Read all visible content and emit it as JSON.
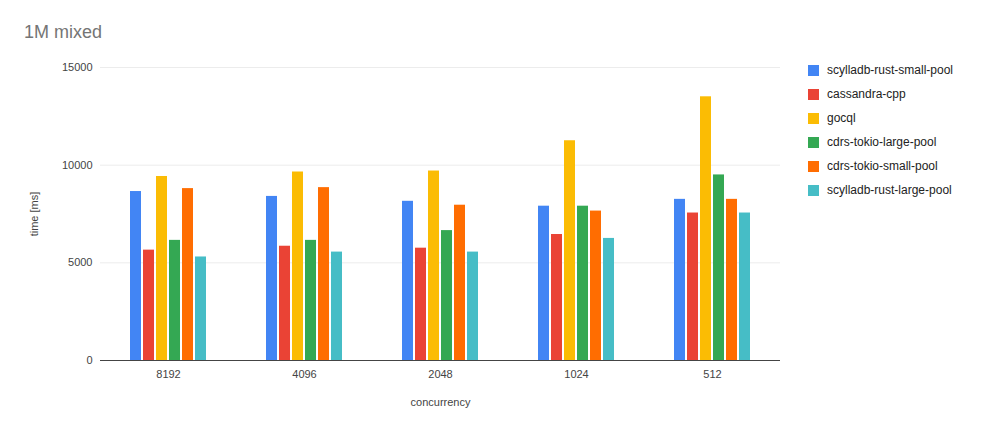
{
  "chart_data": {
    "type": "bar",
    "title": "1M mixed",
    "x_label": "concurrency",
    "y_label": "time [ms]",
    "categories": [
      "8192",
      "4096",
      "2048",
      "1024",
      "512"
    ],
    "series": [
      {
        "name": "scylladb-rust-small-pool",
        "color": "#4285f4",
        "values": [
          8650,
          8400,
          8150,
          7900,
          8250
        ]
      },
      {
        "name": "cassandra-cpp",
        "color": "#ea4335",
        "values": [
          5650,
          5850,
          5750,
          6450,
          7550
        ]
      },
      {
        "name": "gocql",
        "color": "#fbbc04",
        "values": [
          9420,
          9650,
          9700,
          11250,
          13500
        ]
      },
      {
        "name": "cdrs-tokio-large-pool",
        "color": "#34a853",
        "values": [
          6150,
          6150,
          6650,
          7900,
          9500
        ]
      },
      {
        "name": "cdrs-tokio-small-pool",
        "color": "#ff6d01",
        "values": [
          8800,
          8850,
          7950,
          7650,
          8250
        ]
      },
      {
        "name": "scylladb-rust-large-pool",
        "color": "#46bdc6",
        "values": [
          5300,
          5550,
          5550,
          6250,
          7550
        ]
      }
    ],
    "ylim": [
      0,
      15000
    ],
    "yticks": [
      0,
      5000,
      10000,
      15000
    ],
    "grid": true,
    "legend": "right"
  }
}
